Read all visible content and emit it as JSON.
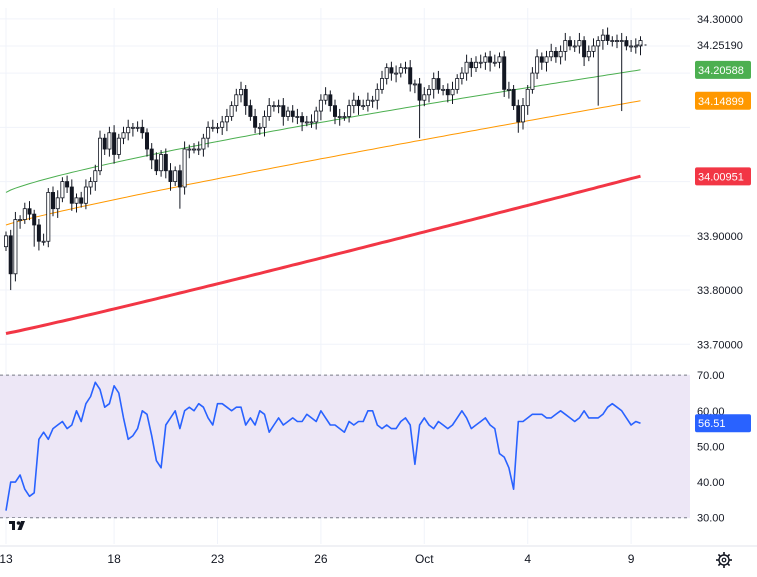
{
  "colors": {
    "background": "#ffffff",
    "grid": "#f0f3fa",
    "candle_up_body": "#ffffff",
    "candle_outline": "#131722",
    "candle_down_body": "#131722",
    "ma_short": "#4caf50",
    "ma_mid": "#ff9800",
    "ma_long": "#f23645",
    "rsi_line": "#2962ff",
    "rsi_band": "#ede7f6",
    "rsi_band_border": "#787b86",
    "text": "#131722"
  },
  "icons": {
    "logo": "tradingview-logo-icon",
    "settings": "gear-icon"
  },
  "chart_data": [
    {
      "type": "candlestick",
      "ylim": [
        33.66,
        34.32
      ],
      "yticks": [
        "34.30000",
        "33.90000",
        "33.80000",
        "33.70000"
      ],
      "yticks_values": [
        34.3,
        33.9,
        33.8,
        33.7
      ],
      "x_labels": [
        {
          "label": "13",
          "index": 0
        },
        {
          "label": "18",
          "index": 23
        },
        {
          "label": "23",
          "index": 45
        },
        {
          "label": "26",
          "index": 67
        },
        {
          "label": "Oct",
          "index": 89
        },
        {
          "label": "4",
          "index": 111
        },
        {
          "label": "9",
          "index": 133
        }
      ],
      "candle_count": 136,
      "closes": [
        33.9,
        33.83,
        33.93,
        33.93,
        33.95,
        33.94,
        33.92,
        33.89,
        33.89,
        33.98,
        33.95,
        33.97,
        34.0,
        33.99,
        33.96,
        33.97,
        33.96,
        33.99,
        34.0,
        34.02,
        34.08,
        34.06,
        34.09,
        34.05,
        34.08,
        34.09,
        34.1,
        34.1,
        34.1,
        34.09,
        34.06,
        34.04,
        34.02,
        34.05,
        34.02,
        34.0,
        34.02,
        33.99,
        34.06,
        34.06,
        34.06,
        34.06,
        34.08,
        34.1,
        34.1,
        34.1,
        34.11,
        34.12,
        34.14,
        34.16,
        34.17,
        34.14,
        34.12,
        34.1,
        34.1,
        34.12,
        34.14,
        34.14,
        34.14,
        34.12,
        34.13,
        34.12,
        34.12,
        34.11,
        34.11,
        34.11,
        34.13,
        34.15,
        34.16,
        34.14,
        34.12,
        34.12,
        34.12,
        34.14,
        34.15,
        34.14,
        34.14,
        34.15,
        34.15,
        34.17,
        34.19,
        34.21,
        34.2,
        34.2,
        34.21,
        34.21,
        34.18,
        34.18,
        34.15,
        34.16,
        34.17,
        34.19,
        34.17,
        34.17,
        34.16,
        34.17,
        34.19,
        34.2,
        34.22,
        34.21,
        34.22,
        34.22,
        34.23,
        34.22,
        34.22,
        34.23,
        34.17,
        34.17,
        34.14,
        34.11,
        34.14,
        34.17,
        34.2,
        34.23,
        34.22,
        34.23,
        34.24,
        34.23,
        34.24,
        34.26,
        34.25,
        34.25,
        34.26,
        34.23,
        34.24,
        34.25,
        34.26,
        34.27,
        34.26,
        34.26,
        34.26,
        34.26,
        34.25,
        34.25,
        34.25,
        34.26
      ],
      "wick_spikes": [
        {
          "index": 1,
          "low": 33.8
        },
        {
          "index": 6,
          "low": 33.88
        },
        {
          "index": 37,
          "low": 33.95
        },
        {
          "index": 88,
          "low": 34.08
        },
        {
          "index": 109,
          "low": 34.09
        },
        {
          "index": 126,
          "low": 34.14
        },
        {
          "index": 131,
          "low": 34.13
        }
      ],
      "series": [
        {
          "values_start": 33.98,
          "values_end": 34.206,
          "price": 34.20588,
          "price_label": "34.20588",
          "color_key": "ma_short"
        },
        {
          "values_start": 33.92,
          "values_end": 34.149,
          "price": 34.14899,
          "price_label": "34.14899",
          "color_key": "ma_mid"
        },
        {
          "values_start": 33.72,
          "values_end": 34.01,
          "price": 34.00951,
          "price_label": "34.00951",
          "color_key": "ma_long"
        }
      ],
      "last_price": 34.2519,
      "last_price_label": "34.25190"
    },
    {
      "type": "line",
      "ylim": [
        26,
        72
      ],
      "yticks": [
        "70.00",
        "60.00",
        "50.00",
        "40.00",
        "30.00"
      ],
      "yticks_values": [
        70,
        60,
        50,
        40,
        30
      ],
      "band": [
        30,
        70
      ],
      "values": [
        32,
        40,
        40,
        42,
        38,
        36,
        37,
        52,
        54,
        52,
        55,
        56,
        57,
        55,
        56,
        60,
        57,
        62,
        64,
        68,
        66,
        61,
        62,
        67,
        65,
        58,
        52,
        53,
        55,
        60,
        59,
        53,
        46,
        44,
        56,
        58,
        60,
        55,
        60,
        61,
        60,
        62,
        61,
        58,
        56,
        62,
        62,
        61,
        60,
        61,
        61,
        56,
        58,
        56,
        60,
        59,
        54,
        56,
        58,
        56,
        57,
        58,
        57,
        57,
        59,
        58,
        57,
        60,
        58,
        56,
        56,
        55,
        54,
        57,
        56,
        57,
        57,
        60,
        60,
        56,
        55,
        56,
        55,
        55,
        57,
        58,
        56,
        45,
        56,
        58,
        56,
        55,
        57,
        56,
        55,
        56,
        58,
        60,
        58,
        55,
        56,
        57,
        58,
        56,
        55,
        48,
        47,
        44,
        38,
        57,
        57,
        58,
        59,
        59,
        59,
        58,
        58,
        59,
        60,
        59,
        58,
        57,
        58,
        60,
        58,
        58,
        58,
        59,
        61,
        62,
        61,
        60,
        58,
        56,
        57,
        56.5
      ],
      "last_value": 56.51,
      "last_value_label": "56.51"
    }
  ]
}
